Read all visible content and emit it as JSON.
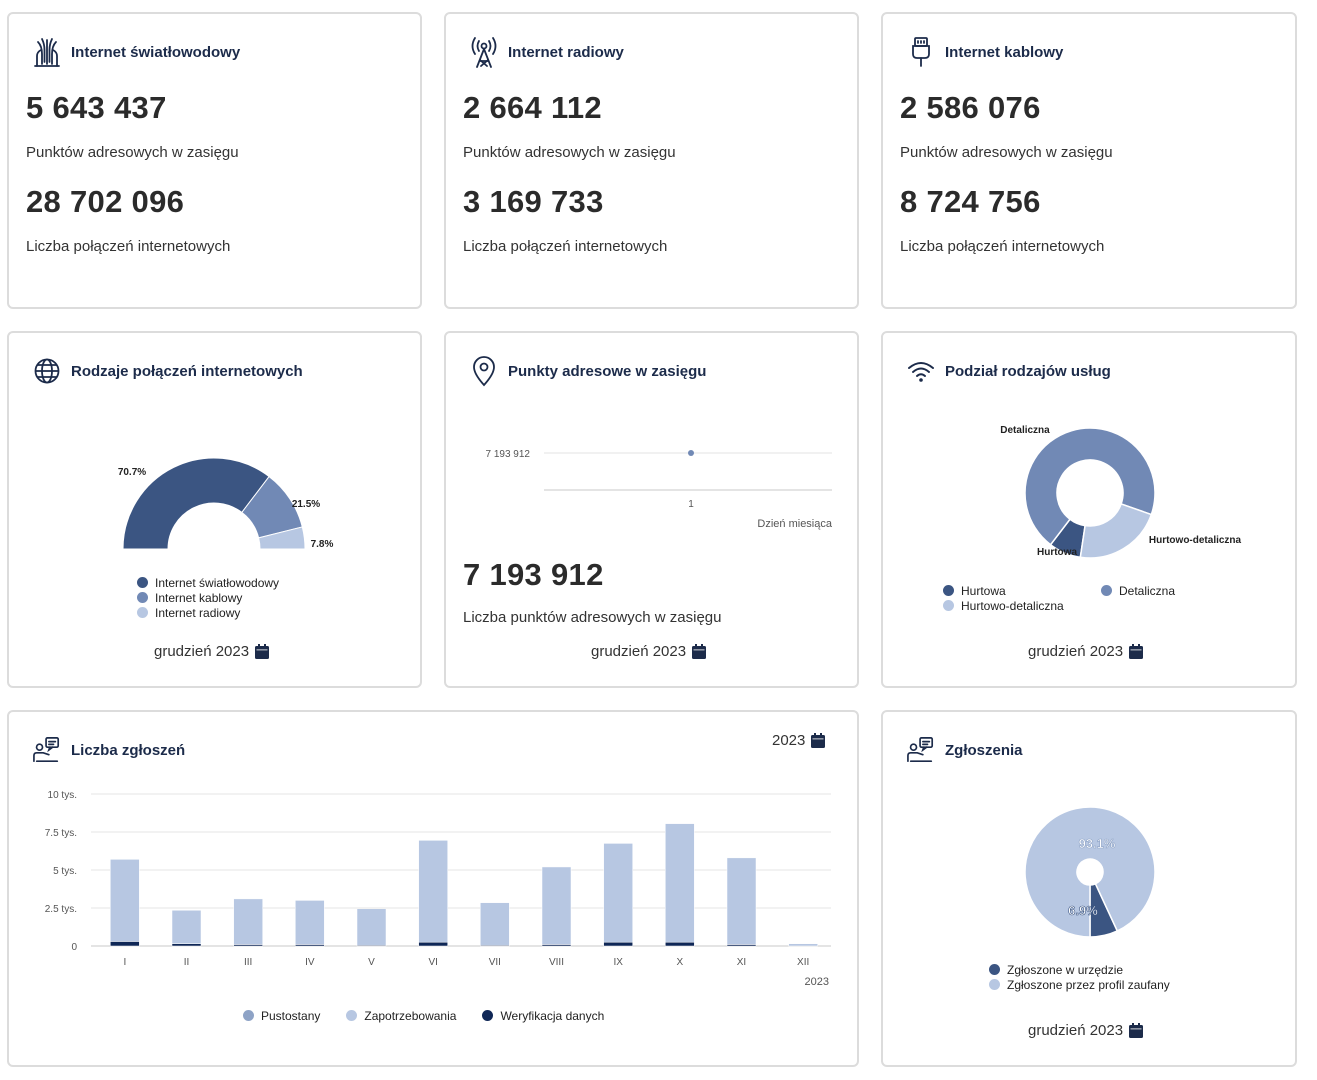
{
  "colors": {
    "dark": "#3b5582",
    "mid": "#7189b5",
    "light": "#b7c7e2",
    "navy": "#0f2756",
    "accent_title": "#1c2b4a"
  },
  "cards": {
    "fiber": {
      "title": "Internet światłowodowy",
      "icon": "fiber-optic-icon",
      "points_value": "5 643 437",
      "points_label": "Punktów adresowych w zasięgu",
      "connections_value": "28 702 096",
      "connections_label": "Liczba połączeń internetowych"
    },
    "radio": {
      "title": "Internet radiowy",
      "icon": "radio-tower-icon",
      "points_value": "2 664 112",
      "points_label": "Punktów adresowych w zasięgu",
      "connections_value": "3 169 733",
      "connections_label": "Liczba połączeń internetowych"
    },
    "cable": {
      "title": "Internet kablowy",
      "icon": "cable-plug-icon",
      "points_value": "2 586 076",
      "points_label": "Punktów adresowych w zasięgu",
      "connections_value": "8 724 756",
      "connections_label": "Liczba połączeń internetowych"
    },
    "types": {
      "title": "Rodzaje połączeń internetowych",
      "icon": "globe-icon",
      "date": "grudzień 2023"
    },
    "points": {
      "title": "Punkty adresowe w zasięgu",
      "icon": "location-pin-icon",
      "big_value": "7 193 912",
      "big_label": "Liczba punktów adresowych w zasięgu",
      "date": "grudzień 2023"
    },
    "services": {
      "title": "Podział rodzajów usług",
      "icon": "wifi-icon",
      "date": "grudzień 2023"
    },
    "reports": {
      "title": "Liczba zgłoszeń",
      "icon": "reports-icon",
      "year": "2023"
    },
    "zgl": {
      "title": "Zgłoszenia",
      "icon": "reports-icon",
      "date": "grudzień 2023"
    }
  },
  "chart_data": [
    {
      "id": "types",
      "type": "pie",
      "subtype": "semi-donut",
      "labels": [
        "Internet światłowodowy",
        "Internet kablowy",
        "Internet radiowy"
      ],
      "values": [
        70.7,
        21.5,
        7.8
      ],
      "value_labels": [
        "70.7%",
        "21.5%",
        "7.8%"
      ],
      "colors": [
        "#3b5582",
        "#7189b5",
        "#b7c7e2"
      ],
      "legend": "bottom"
    },
    {
      "id": "points",
      "type": "line",
      "x": [
        1
      ],
      "values": [
        7193912
      ],
      "tick_labels_y": [
        "7 193 912"
      ],
      "tick_labels_x": [
        "1"
      ],
      "xlabel": "Dzień miesiąca"
    },
    {
      "id": "services",
      "type": "pie",
      "subtype": "donut",
      "labels": [
        "Hurtowa",
        "Detaliczna",
        "Hurtowo-detaliczna"
      ],
      "values": [
        8,
        70,
        22
      ],
      "colors": [
        "#3b5582",
        "#7189b5",
        "#b7c7e2"
      ],
      "legend": "bottom"
    },
    {
      "id": "reports",
      "type": "bar",
      "stacked": true,
      "categories": [
        "I",
        "II",
        "III",
        "IV",
        "V",
        "VI",
        "VII",
        "VIII",
        "IX",
        "X",
        "XI",
        "XII"
      ],
      "series": [
        {
          "name": "Pustostany",
          "color": "#8ea3c6",
          "values": [
            0,
            0,
            0,
            0,
            0,
            0,
            0,
            0,
            0,
            0,
            0,
            0
          ]
        },
        {
          "name": "Zapotrzebowania",
          "color": "#b7c7e2",
          "values": [
            5400,
            2200,
            3000,
            2900,
            2400,
            6700,
            2800,
            5100,
            6500,
            7800,
            5700,
            150
          ]
        },
        {
          "name": "Weryfikacja danych",
          "color": "#0f2756",
          "values": [
            300,
            150,
            100,
            100,
            50,
            250,
            50,
            100,
            250,
            250,
            100,
            0
          ]
        }
      ],
      "ylim": [
        0,
        10000
      ],
      "y_ticks": [
        0,
        2500,
        5000,
        7500,
        10000
      ],
      "y_tick_labels": [
        "0",
        "2.5 tys.",
        "5 tys.",
        "7.5 tys.",
        "10 tys."
      ],
      "xlabel": "2023",
      "legend": "bottom"
    },
    {
      "id": "zgl",
      "type": "pie",
      "subtype": "donut",
      "labels": [
        "Zgłoszone w urzędzie",
        "Zgłoszone przez profil zaufany"
      ],
      "values": [
        6.9,
        93.1
      ],
      "value_labels": [
        "6.9%",
        "93.1%"
      ],
      "colors": [
        "#3b5582",
        "#b7c7e2"
      ],
      "legend": "bottom"
    }
  ]
}
